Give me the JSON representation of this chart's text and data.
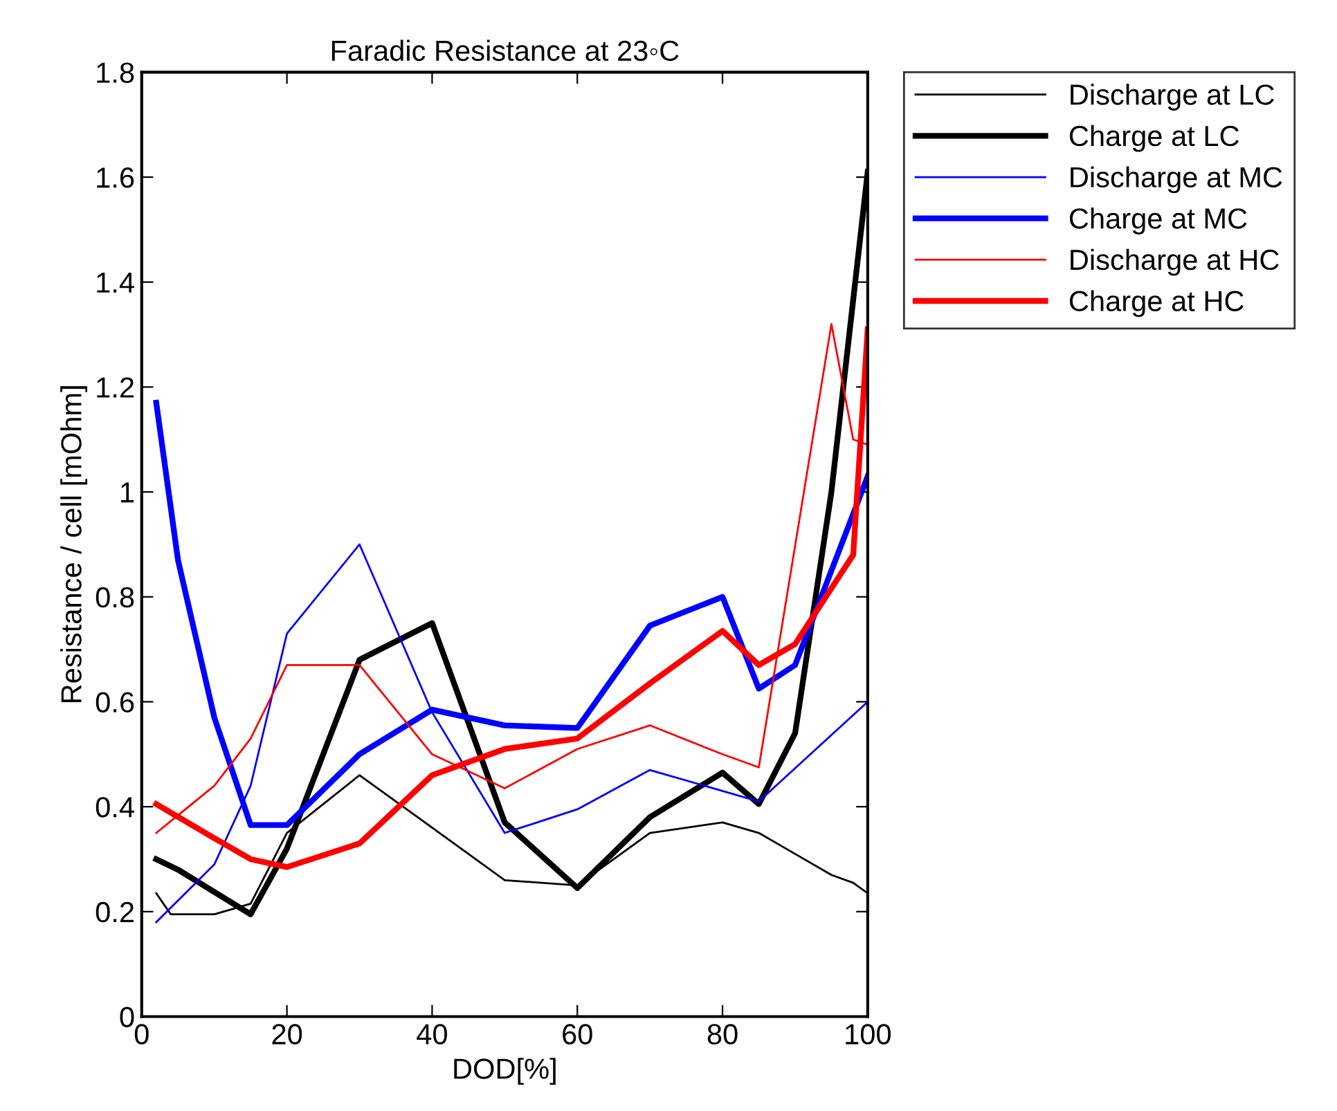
{
  "chart_data": {
    "type": "line",
    "title": "Faradic Resistance at 23◦C",
    "xlabel": "DOD[%]",
    "ylabel": "Resistance / cell [mOhm]",
    "xlim": [
      0,
      100
    ],
    "xticks": [
      0,
      20,
      40,
      60,
      80,
      100
    ],
    "ylim": [
      0,
      1.8
    ],
    "yticks": [
      0,
      0.2,
      0.4,
      0.6,
      0.8,
      1,
      1.2,
      1.4,
      1.6,
      1.8
    ],
    "grid": false,
    "legend": "top right",
    "marker": "none",
    "line_style": "solid",
    "series": [
      {
        "name": "Discharge at LC",
        "color": "#000000",
        "x": [
          2,
          4,
          10,
          15,
          20,
          30,
          40,
          50,
          60,
          70,
          80,
          85,
          90,
          95,
          98,
          100
        ],
        "values": [
          0.235,
          0.195,
          0.195,
          0.215,
          0.35,
          0.46,
          0.36,
          0.26,
          0.25,
          0.35,
          0.37,
          0.35,
          0.31,
          0.27,
          0.255,
          0.235
        ]
      },
      {
        "name": "Charge at LC",
        "color": "#000000",
        "x": [
          2,
          5,
          15,
          20,
          30,
          40,
          50,
          60,
          70,
          80,
          85,
          90,
          95,
          100
        ],
        "values": [
          0.3,
          0.28,
          0.195,
          0.32,
          0.68,
          0.75,
          0.37,
          0.245,
          0.38,
          0.465,
          0.405,
          0.54,
          1.0,
          1.61
        ]
      },
      {
        "name": "Discharge at MC",
        "color": "#0000ff",
        "x": [
          2,
          10,
          15,
          20,
          30,
          40,
          50,
          60,
          70,
          80,
          85,
          100
        ],
        "values": [
          0.18,
          0.29,
          0.44,
          0.73,
          0.9,
          0.58,
          0.35,
          0.395,
          0.47,
          0.43,
          0.41,
          0.6
        ]
      },
      {
        "name": "Charge at MC",
        "color": "#0000ff",
        "x": [
          2,
          5,
          10,
          15,
          20,
          30,
          40,
          50,
          60,
          70,
          80,
          85,
          90,
          100
        ],
        "values": [
          1.17,
          0.87,
          0.57,
          0.365,
          0.365,
          0.5,
          0.585,
          0.555,
          0.55,
          0.745,
          0.8,
          0.625,
          0.67,
          1.03
        ]
      },
      {
        "name": "Discharge at HC",
        "color": "#ff0000",
        "x": [
          2,
          10,
          15,
          20,
          30,
          40,
          50,
          60,
          70,
          80,
          85,
          95,
          98,
          100
        ],
        "values": [
          0.35,
          0.44,
          0.53,
          0.67,
          0.67,
          0.5,
          0.435,
          0.51,
          0.555,
          0.5,
          0.475,
          1.32,
          1.1,
          1.09
        ]
      },
      {
        "name": "Charge at HC",
        "color": "#ff0000",
        "x": [
          2,
          10,
          15,
          20,
          30,
          40,
          50,
          60,
          70,
          80,
          85,
          90,
          98,
          100
        ],
        "values": [
          0.405,
          0.34,
          0.3,
          0.285,
          0.33,
          0.46,
          0.51,
          0.53,
          0.635,
          0.735,
          0.67,
          0.71,
          0.88,
          1.31
        ]
      }
    ]
  }
}
